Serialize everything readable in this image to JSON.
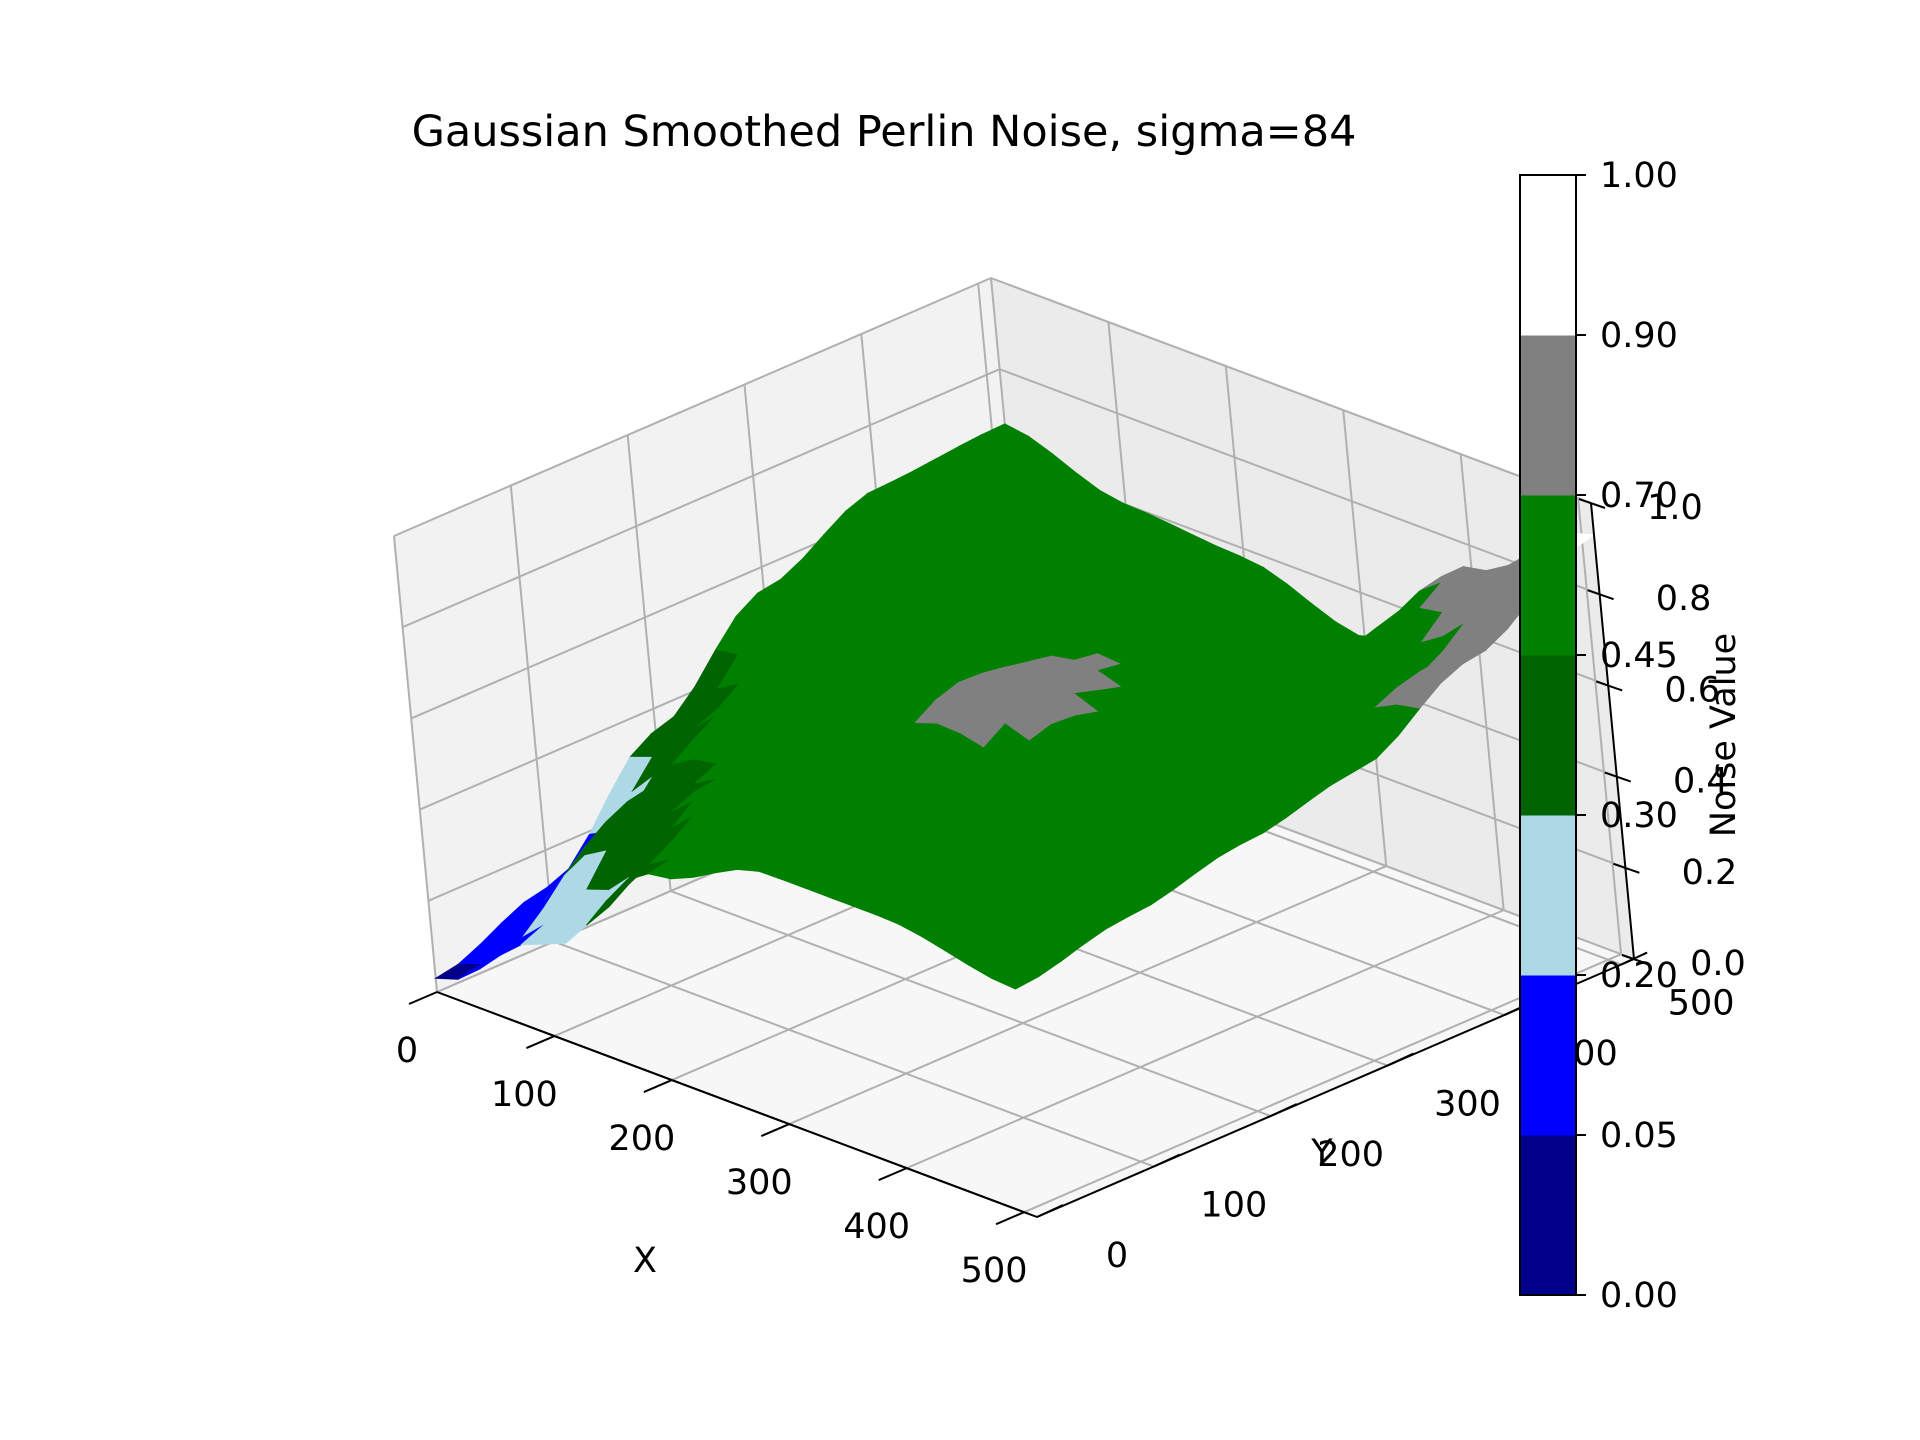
{
  "chart_data": {
    "type": "surface3d",
    "title": "Gaussian Smoothed Perlin Noise, sigma=84",
    "xlabel": "X",
    "ylabel": "Y",
    "zlabel": "",
    "xlim": [
      0,
      511
    ],
    "ylim": [
      0,
      511
    ],
    "zlim": [
      0,
      1
    ],
    "x_ticks": [
      "0",
      "100",
      "200",
      "300",
      "400",
      "500"
    ],
    "y_ticks": [
      "0",
      "100",
      "200",
      "300",
      "400",
      "500"
    ],
    "z_ticks": [
      "0.0",
      "0.2",
      "0.4",
      "0.6",
      "0.8",
      "1.0"
    ],
    "grid": true,
    "colorbar": {
      "label": "Noise Value",
      "boundaries": [
        0.0,
        0.05,
        0.2,
        0.3,
        0.45,
        0.7,
        0.9,
        1.0
      ],
      "tick_labels": [
        "0.00",
        "0.05",
        "0.20",
        "0.30",
        "0.45",
        "0.70",
        "0.90",
        "1.00"
      ],
      "colors": [
        "#00008b",
        "#0000ff",
        "#add8e6",
        "#006400",
        "#008000",
        "#808080",
        "#ffffff"
      ]
    },
    "surface_grid": {
      "x": [
        0,
        100,
        200,
        300,
        400,
        511
      ],
      "y": [
        0,
        100,
        200,
        300,
        400,
        511
      ],
      "z_rows_by_x": [
        [
          0.03,
          0.12,
          0.35,
          0.55,
          0.66,
          0.68
        ],
        [
          0.2,
          0.42,
          0.52,
          0.58,
          0.62,
          0.6
        ],
        [
          0.45,
          0.55,
          0.6,
          0.65,
          0.62,
          0.58
        ],
        [
          0.55,
          0.62,
          0.75,
          0.7,
          0.55,
          0.5
        ],
        [
          0.55,
          0.58,
          0.68,
          0.62,
          0.58,
          0.75
        ],
        [
          0.5,
          0.55,
          0.6,
          0.65,
          0.78,
          0.93
        ]
      ]
    }
  }
}
